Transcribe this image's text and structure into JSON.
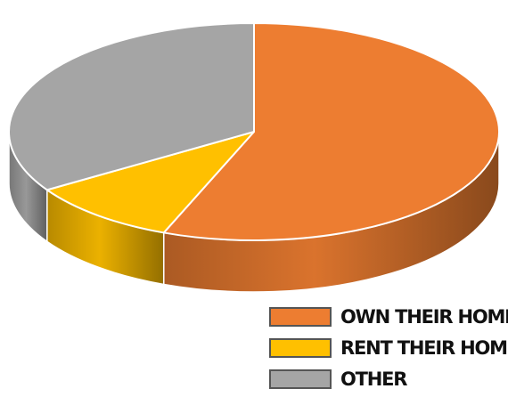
{
  "chart_data": {
    "type": "pie",
    "style": "3d",
    "title": "",
    "slices": [
      {
        "label": "OWN THEIR HOME",
        "value": 56,
        "color": "#ED7D31"
      },
      {
        "label": "RENT THEIR HOME",
        "value": 10,
        "color": "#FFC000"
      },
      {
        "label": "OTHER",
        "value": 34,
        "color": "#A5A5A5"
      }
    ],
    "legend": {
      "position": "bottom-right",
      "entries": [
        "OWN THEIR HOME",
        "RENT THEIR HOME",
        "OTHER"
      ]
    }
  }
}
